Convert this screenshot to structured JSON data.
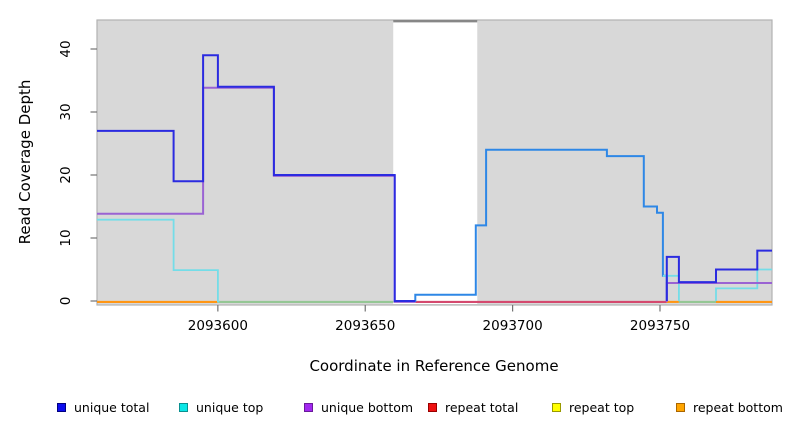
{
  "chart_data": {
    "type": "line",
    "subtype": "step-coverage-plot",
    "title": "",
    "xlabel": "Coordinate in Reference Genome",
    "ylabel": "Read Coverage Depth",
    "xlim": [
      2093559,
      2093788
    ],
    "ylim": [
      0,
      44.5
    ],
    "x_ticks": [
      2093600,
      2093650,
      2093700,
      2093750
    ],
    "y_ticks": [
      0,
      10,
      20,
      30,
      40
    ],
    "grid": false,
    "plot_background": "#d8d8d8",
    "plot_border_color": "#b2b2b2",
    "tick_color": "#737373",
    "masked_region": {
      "x_start": 2093659.5,
      "x_end": 2093688,
      "color": "#ffffff",
      "top_edge_color": "#878787"
    },
    "legend_position": "bottom",
    "legend": [
      {
        "label": "unique total",
        "fill": "#0d0dee",
        "border": "#000080"
      },
      {
        "label": "unique top",
        "fill": "#0be6e6",
        "border": "#0a9090"
      },
      {
        "label": "unique bottom",
        "fill": "#a228f0",
        "border": "#6a1a9a"
      },
      {
        "label": "repeat total",
        "fill": "#ee1111",
        "border": "#990000"
      },
      {
        "label": "repeat top",
        "fill": "#ffff00",
        "border": "#999900"
      },
      {
        "label": "repeat bottom",
        "fill": "#ffa500",
        "border": "#aa6600"
      }
    ],
    "baseline_segments": [
      {
        "name": "zero-line-repeat-bottom-left",
        "x0": 2093559,
        "x1": 2093600,
        "color": "#ff9614"
      },
      {
        "name": "zero-line-unique-top-blend",
        "x0": 2093600,
        "x1": 2093659.5,
        "color": "#95c795"
      },
      {
        "name": "zero-line-repeat-total",
        "x0": 2093667,
        "x1": 2093752.3,
        "color": "#d4496e"
      },
      {
        "name": "zero-line-repeat-bottom-mid",
        "x0": 2093752.3,
        "x1": 2093756.4,
        "color": "#ff9614"
      },
      {
        "name": "zero-line-unique-top-blend-2",
        "x0": 2093756.4,
        "x1": 2093769,
        "color": "#95c795"
      },
      {
        "name": "zero-line-repeat-bottom-right",
        "x0": 2093769,
        "x1": 2093788,
        "color": "#ff9614"
      }
    ],
    "series": [
      {
        "name": "coverage-total-right",
        "color": "#2e87e6",
        "width": 2,
        "dy": 0,
        "start_at_zero": false,
        "steps": [
          [
            2093660,
            0
          ],
          [
            2093667,
            1
          ],
          [
            2093687.5,
            12
          ],
          [
            2093691,
            24
          ],
          [
            2093732,
            23
          ],
          [
            2093744.5,
            15
          ],
          [
            2093749,
            14
          ],
          [
            2093751,
            4
          ],
          [
            2093752.3,
            0
          ],
          [
            2093752.3,
            0
          ]
        ]
      },
      {
        "name": "unique-top-left",
        "color": "#74dde8",
        "width": 1.8,
        "dy": 0.6,
        "start_at_zero": false,
        "steps": [
          [
            2093559,
            13
          ],
          [
            2093585,
            5
          ],
          [
            2093600,
            0
          ],
          [
            2093600.5,
            0
          ]
        ]
      },
      {
        "name": "unique-top-right-a",
        "color": "#74dde8",
        "width": 1.8,
        "dy": 0,
        "start_at_zero": false,
        "steps": [
          [
            2093751,
            4
          ],
          [
            2093756.4,
            0
          ],
          [
            2093756.4,
            0
          ]
        ]
      },
      {
        "name": "unique-top-right-b",
        "color": "#74dde8",
        "width": 1.8,
        "dy": 0,
        "start_at_zero": true,
        "steps": [
          [
            2093769,
            2
          ],
          [
            2093783,
            5
          ],
          [
            2093788,
            5
          ]
        ]
      },
      {
        "name": "unique-bottom-left",
        "color": "#9a63d3",
        "width": 2,
        "dy": 0.9,
        "start_at_zero": false,
        "steps": [
          [
            2093559,
            14
          ],
          [
            2093595,
            34
          ],
          [
            2093619,
            20
          ],
          [
            2093660,
            0
          ],
          [
            2093667,
            0
          ]
        ]
      },
      {
        "name": "unique-bottom-right",
        "color": "#9a63d3",
        "width": 2,
        "dy": 0.9,
        "start_at_zero": true,
        "steps": [
          [
            2093752.3,
            3
          ],
          [
            2093788,
            3
          ]
        ]
      },
      {
        "name": "unique-total-left",
        "color": "#2b2be0",
        "width": 2,
        "dy": 0,
        "start_at_zero": false,
        "steps": [
          [
            2093559,
            27
          ],
          [
            2093585,
            19
          ],
          [
            2093595,
            39
          ],
          [
            2093600,
            34
          ],
          [
            2093619,
            20
          ],
          [
            2093660,
            0
          ],
          [
            2093667,
            0
          ]
        ]
      },
      {
        "name": "unique-total-right",
        "color": "#2b2be0",
        "width": 2,
        "dy": 0,
        "start_at_zero": true,
        "steps": [
          [
            2093752.3,
            7
          ],
          [
            2093756.4,
            3
          ],
          [
            2093769,
            5
          ],
          [
            2093783,
            8
          ],
          [
            2093788,
            8
          ]
        ]
      }
    ]
  }
}
